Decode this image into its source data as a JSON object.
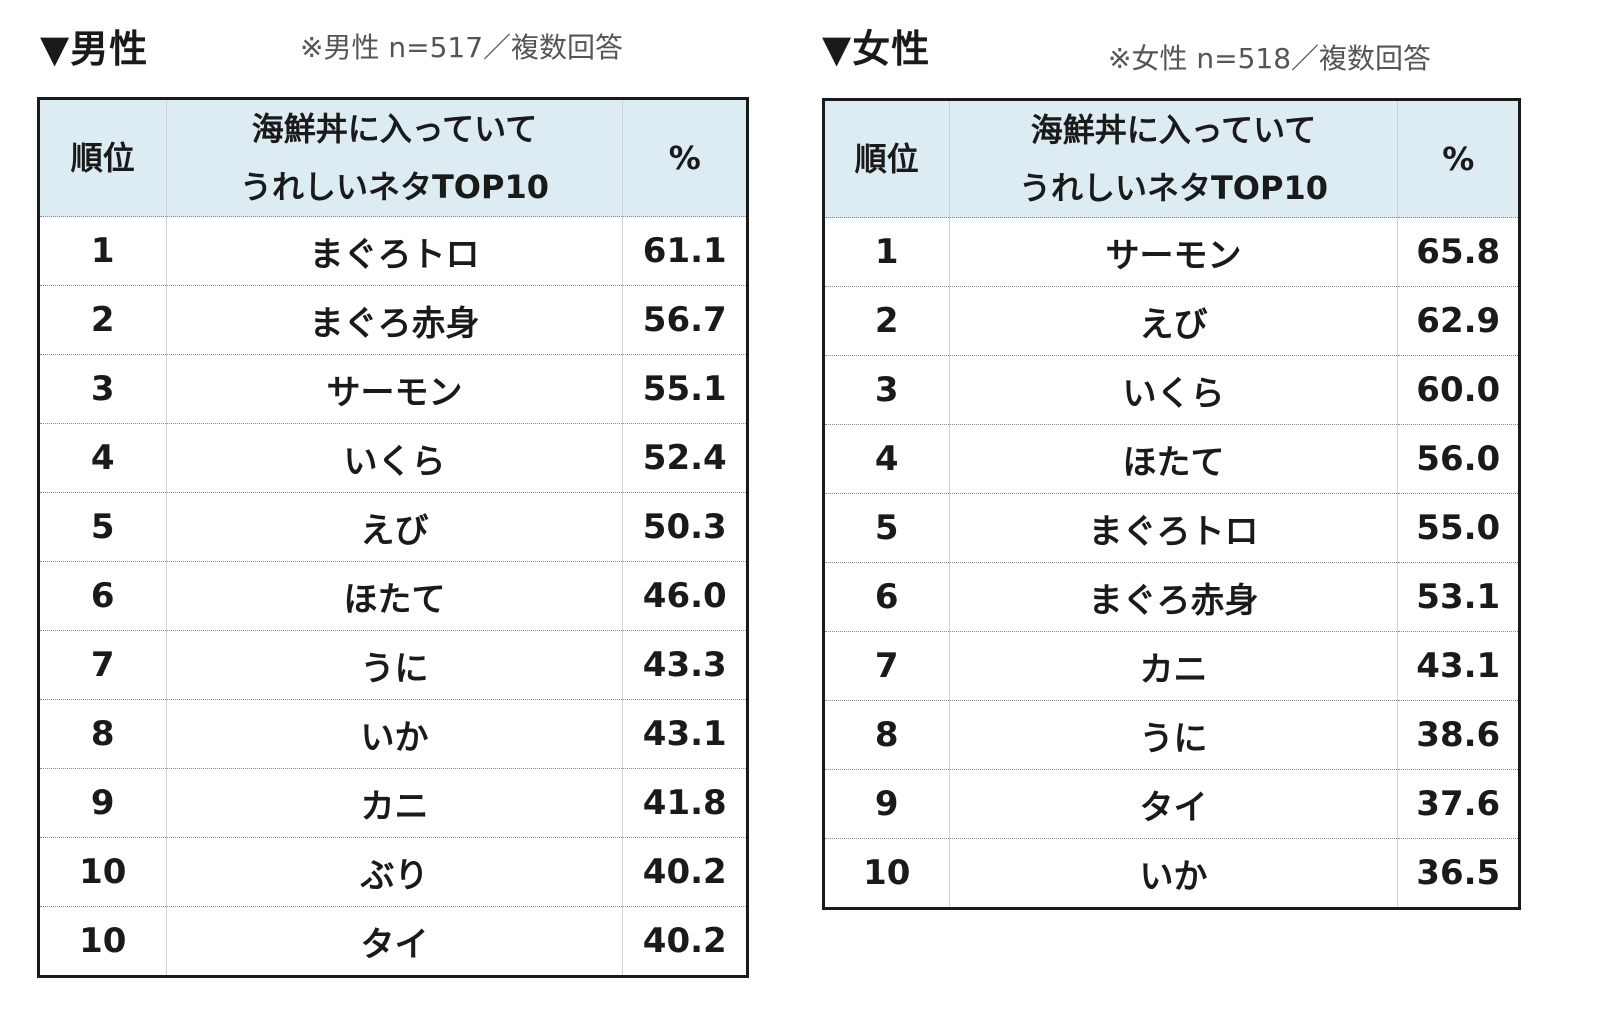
{
  "men": {
    "title": "▼男性",
    "note": "※男性 n=517／複数回答",
    "headers": {
      "rank": "順位",
      "item_line1": "海鮮丼に入っていて",
      "item_line2": "うれしいネタTOP10",
      "pct": "%"
    },
    "rows": [
      {
        "rank": "1",
        "item": "まぐろトロ",
        "pct": "61.1"
      },
      {
        "rank": "2",
        "item": "まぐろ赤身",
        "pct": "56.7"
      },
      {
        "rank": "3",
        "item": "サーモン",
        "pct": "55.1"
      },
      {
        "rank": "4",
        "item": "いくら",
        "pct": "52.4"
      },
      {
        "rank": "5",
        "item": "えび",
        "pct": "50.3"
      },
      {
        "rank": "6",
        "item": "ほたて",
        "pct": "46.0"
      },
      {
        "rank": "7",
        "item": "うに",
        "pct": "43.3"
      },
      {
        "rank": "8",
        "item": "いか",
        "pct": "43.1"
      },
      {
        "rank": "9",
        "item": "カニ",
        "pct": "41.8"
      },
      {
        "rank": "10",
        "item": "ぶり",
        "pct": "40.2"
      },
      {
        "rank": "10",
        "item": "タイ",
        "pct": "40.2"
      }
    ]
  },
  "women": {
    "title": "▼女性",
    "note": "※女性 n=518／複数回答",
    "headers": {
      "rank": "順位",
      "item_line1": "海鮮丼に入っていて",
      "item_line2": "うれしいネタTOP10",
      "pct": "%"
    },
    "rows": [
      {
        "rank": "1",
        "item": "サーモン",
        "pct": "65.8"
      },
      {
        "rank": "2",
        "item": "えび",
        "pct": "62.9"
      },
      {
        "rank": "3",
        "item": "いくら",
        "pct": "60.0"
      },
      {
        "rank": "4",
        "item": "ほたて",
        "pct": "56.0"
      },
      {
        "rank": "5",
        "item": "まぐろトロ",
        "pct": "55.0"
      },
      {
        "rank": "6",
        "item": "まぐろ赤身",
        "pct": "53.1"
      },
      {
        "rank": "7",
        "item": "カニ",
        "pct": "43.1"
      },
      {
        "rank": "8",
        "item": "うに",
        "pct": "38.6"
      },
      {
        "rank": "9",
        "item": "タイ",
        "pct": "37.6"
      },
      {
        "rank": "10",
        "item": "いか",
        "pct": "36.5"
      }
    ]
  },
  "colors": {
    "header_bg": "#dcecf2",
    "border": "#1a1a1a"
  }
}
